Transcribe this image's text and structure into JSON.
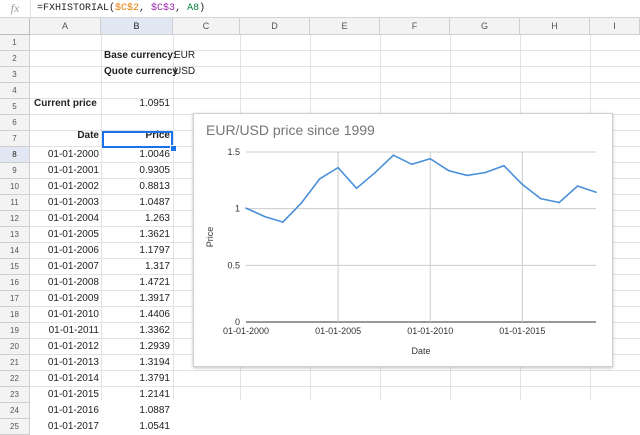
{
  "formula_bar": {
    "fx_label": "fx",
    "prefix": "=FXHISTORIAL(",
    "arg1": "$C$2",
    "sep1": ", ",
    "arg2": "$C$3",
    "sep2": ", ",
    "arg3": "A8",
    "suffix": ")"
  },
  "columns": [
    "A",
    "B",
    "C",
    "D",
    "E",
    "F",
    "G",
    "H",
    "I"
  ],
  "selected_column": "B",
  "rows": [
    1,
    2,
    3,
    4,
    5,
    6,
    7,
    8,
    9,
    10,
    11,
    12,
    13,
    14,
    15,
    16,
    17,
    18,
    19,
    20,
    21,
    22,
    23,
    24,
    25
  ],
  "selected_row": 8,
  "sheet": {
    "base_label": "Base currency:",
    "base_value": "EUR",
    "quote_label": "Quote currency",
    "quote_value": "USD",
    "current_label": "Current price",
    "current_value": "1.0951",
    "date_header": "Date",
    "price_header": "Price",
    "table": [
      {
        "date": "01-01-2000",
        "price": "1.0046"
      },
      {
        "date": "01-01-2001",
        "price": "0.9305"
      },
      {
        "date": "01-01-2002",
        "price": "0.8813"
      },
      {
        "date": "01-01-2003",
        "price": "1.0487"
      },
      {
        "date": "01-01-2004",
        "price": "1.263"
      },
      {
        "date": "01-01-2005",
        "price": "1.3621"
      },
      {
        "date": "01-01-2006",
        "price": "1.1797"
      },
      {
        "date": "01-01-2007",
        "price": "1.317"
      },
      {
        "date": "01-01-2008",
        "price": "1.4721"
      },
      {
        "date": "01-01-2009",
        "price": "1.3917"
      },
      {
        "date": "01-01-2010",
        "price": "1.4406"
      },
      {
        "date": "01-01-2011",
        "price": "1.3362"
      },
      {
        "date": "01-01-2012",
        "price": "1.2939"
      },
      {
        "date": "01-01-2013",
        "price": "1.3194"
      },
      {
        "date": "01-01-2014",
        "price": "1.3791"
      },
      {
        "date": "01-01-2015",
        "price": "1.2141"
      },
      {
        "date": "01-01-2016",
        "price": "1.0887"
      },
      {
        "date": "01-01-2017",
        "price": "1.0541"
      }
    ]
  },
  "chart_data": {
    "type": "line",
    "title": "EUR/USD price since 1999",
    "xlabel": "Date",
    "ylabel": "Price",
    "x": [
      "2000-01-01",
      "2001-01-01",
      "2002-01-01",
      "2003-01-01",
      "2004-01-01",
      "2005-01-01",
      "2006-01-01",
      "2007-01-01",
      "2008-01-01",
      "2009-01-01",
      "2010-01-01",
      "2011-01-01",
      "2012-01-01",
      "2013-01-01",
      "2014-01-01",
      "2015-01-01",
      "2016-01-01",
      "2017-01-01",
      "2018-01-01",
      "2019-01-01"
    ],
    "series": [
      {
        "values": [
          1.0046,
          0.9305,
          0.8813,
          1.0487,
          1.263,
          1.3621,
          1.1797,
          1.317,
          1.4721,
          1.3917,
          1.4406,
          1.3362,
          1.2939,
          1.3194,
          1.3791,
          1.2141,
          1.0887,
          1.0541,
          1.2,
          1.145
        ]
      }
    ],
    "xlim": [
      "2000-01-01",
      "2019-01-01"
    ],
    "ylim": [
      0,
      1.5
    ],
    "y_ticks": [
      "0",
      "0.5",
      "1",
      "1.5"
    ],
    "x_ticks": [
      {
        "date": "2000-01-01",
        "label": "01-01-2000"
      },
      {
        "date": "2005-01-01",
        "label": "01-01-2005"
      },
      {
        "date": "2010-01-01",
        "label": "01-01-2010"
      },
      {
        "date": "2015-01-01",
        "label": "01-01-2015"
      }
    ],
    "grid": true,
    "line_color": "#4a90d9"
  }
}
